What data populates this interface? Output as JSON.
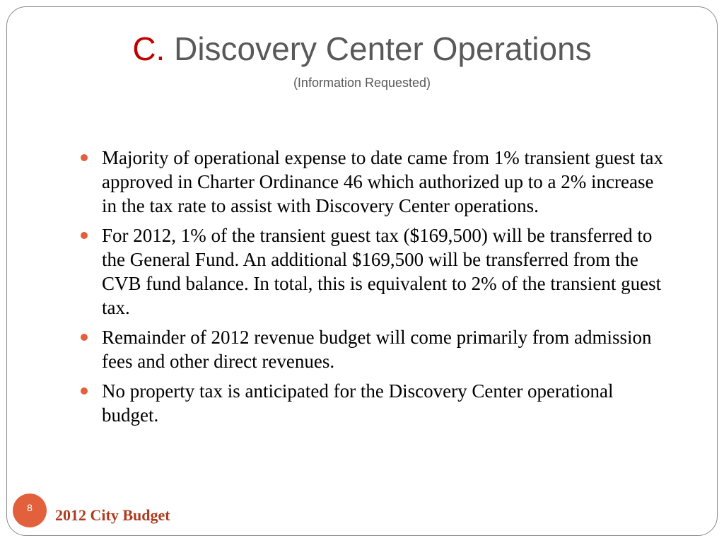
{
  "slide": {
    "title_letter": "C.",
    "title_text": "Discovery Center Operations",
    "subtitle": "(Information Requested)",
    "bullets": [
      {
        "text": "Majority of operational expense to date came from 1% transient guest tax approved in Charter Ordinance 46 which authorized up to a 2% increase in the tax rate to assist with Discovery Center operations."
      },
      {
        "text": "For 2012, 1% of the transient guest tax ($169,500) will be transferred to the General Fund.  An additional $169,500 will be transferred from the CVB fund balance.  In total, this is equivalent to 2% of the transient guest tax."
      },
      {
        "text": "Remainder of 2012 revenue budget will come primarily from admission fees and other direct revenues."
      },
      {
        "text": "No property tax is anticipated for the Discovery Center operational budget."
      }
    ],
    "page_number": "8",
    "footer": "2012 City Budget"
  },
  "colors": {
    "accent": "#e2613c",
    "title_letter": "#c00000",
    "title": "#595959",
    "footer": "#b03a1e"
  }
}
